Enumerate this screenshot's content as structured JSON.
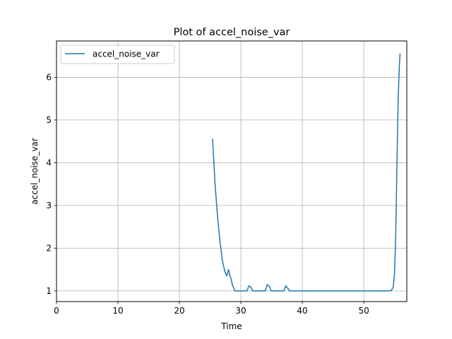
{
  "chart_data": {
    "type": "line",
    "title": "Plot of accel_noise_var",
    "xlabel": "Time",
    "ylabel": "accel_noise_var",
    "xlim": [
      0,
      57
    ],
    "ylim": [
      0.75,
      6.85
    ],
    "xticks": [
      0,
      10,
      20,
      30,
      40,
      50
    ],
    "yticks": [
      1,
      2,
      3,
      4,
      5,
      6
    ],
    "grid": true,
    "legend_position": "top-left",
    "series": [
      {
        "name": "accel_noise_var",
        "color": "#1f77b4",
        "x": [
          25.4,
          25.8,
          26.2,
          26.6,
          27.0,
          27.4,
          27.7,
          28.0,
          28.2,
          28.4,
          28.6,
          29.0,
          29.3,
          29.5,
          30.0,
          30.5,
          31.0,
          31.3,
          31.5,
          31.7,
          31.9,
          32.2,
          33.0,
          34.0,
          34.3,
          34.5,
          34.7,
          34.9,
          35.2,
          36.0,
          37.0,
          37.3,
          37.5,
          37.7,
          37.9,
          38.2,
          40.0,
          45.0,
          50.0,
          54.0,
          54.5,
          54.8,
          55.0,
          55.2,
          55.4,
          55.6,
          55.8,
          55.9
        ],
        "y": [
          4.55,
          3.5,
          2.75,
          2.15,
          1.7,
          1.45,
          1.35,
          1.5,
          1.35,
          1.3,
          1.15,
          1.0,
          1.0,
          1.0,
          1.0,
          1.0,
          1.0,
          1.12,
          1.1,
          1.08,
          1.0,
          1.0,
          1.0,
          1.0,
          1.15,
          1.12,
          1.1,
          1.0,
          1.0,
          1.0,
          1.0,
          1.12,
          1.08,
          1.05,
          1.0,
          1.0,
          1.0,
          1.0,
          1.0,
          1.0,
          1.01,
          1.1,
          1.4,
          2.3,
          4.0,
          5.5,
          6.3,
          6.55
        ]
      }
    ]
  }
}
